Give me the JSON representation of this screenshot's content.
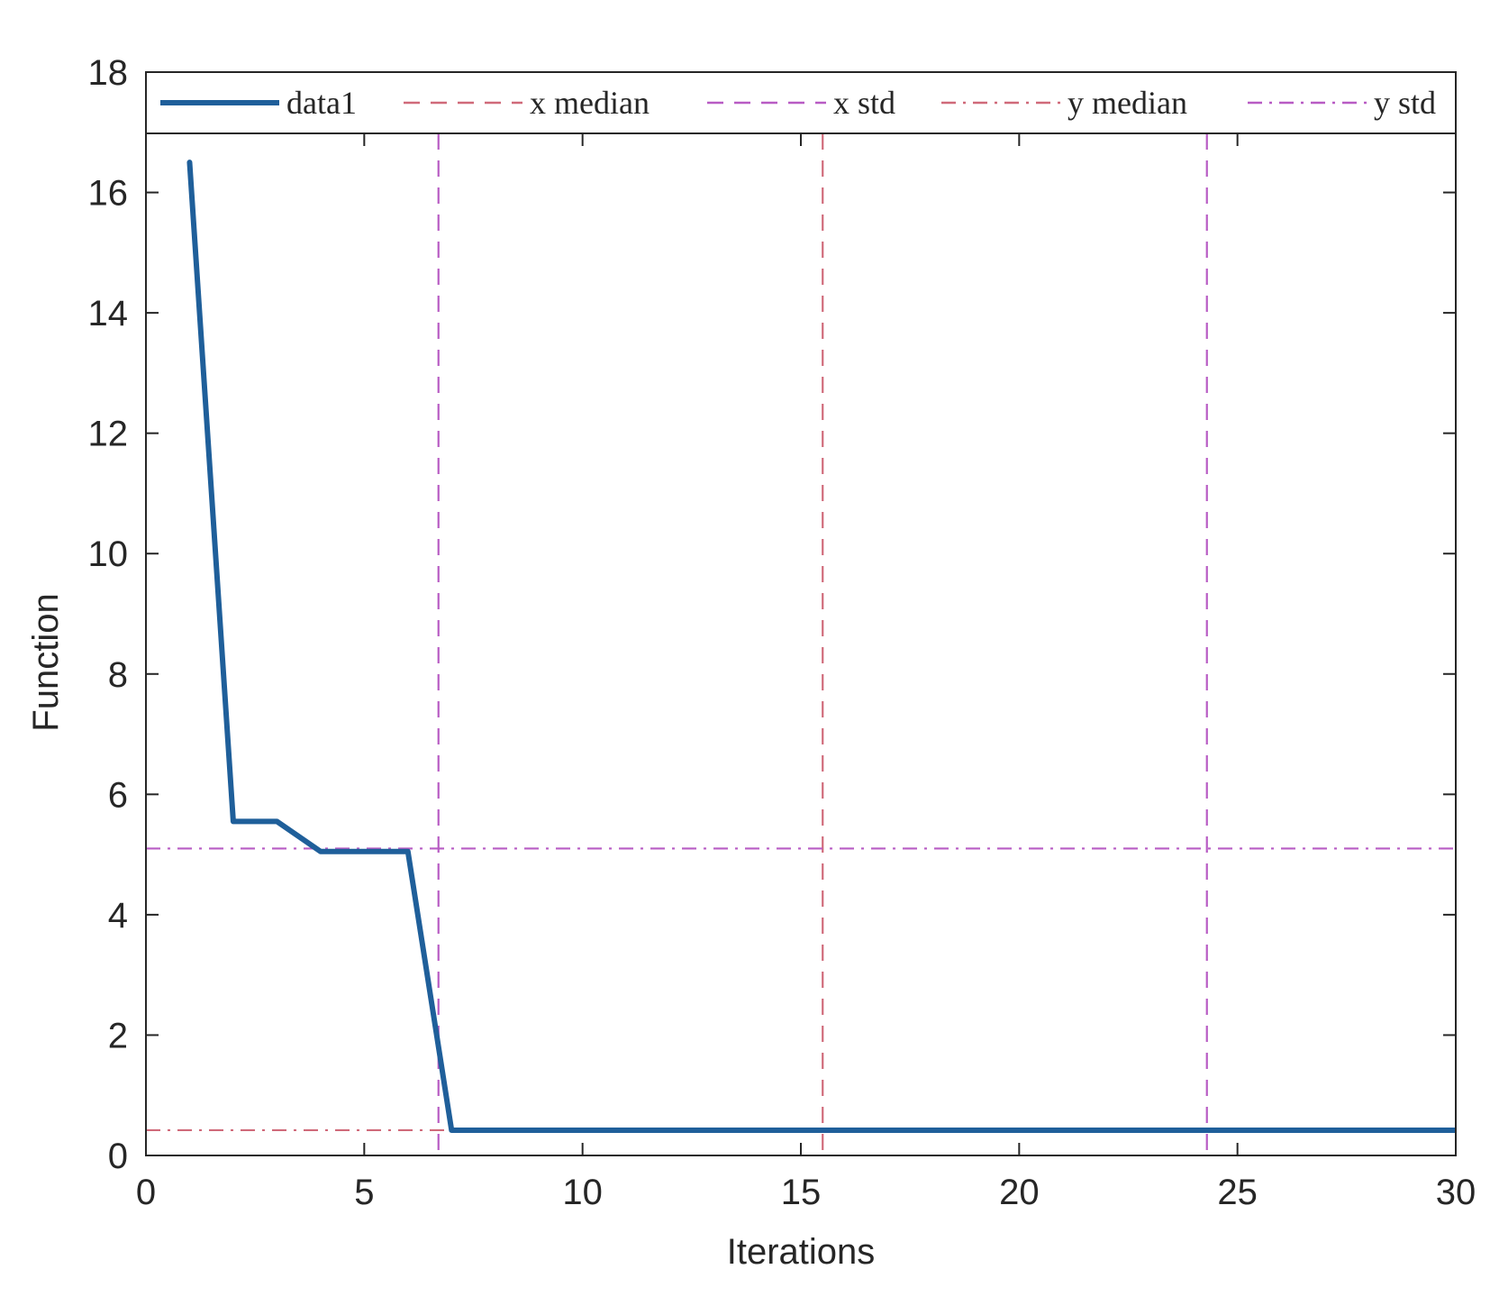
{
  "chart_data": {
    "type": "line",
    "title": "",
    "xlabel": "Iterations",
    "ylabel": "Function",
    "xlim": [
      0,
      30
    ],
    "ylim": [
      0,
      18
    ],
    "xticks": [
      0,
      5,
      10,
      15,
      20,
      25,
      30
    ],
    "yticks": [
      0,
      2,
      4,
      6,
      8,
      10,
      12,
      14,
      16,
      18
    ],
    "grid": false,
    "legend_position": "top",
    "series": [
      {
        "name": "data1",
        "style": "solid",
        "color": "#1f5f9a",
        "x": [
          1,
          2,
          3,
          4,
          5,
          6,
          7,
          8,
          9,
          10,
          11,
          12,
          13,
          14,
          15,
          16,
          17,
          18,
          19,
          20,
          21,
          22,
          23,
          24,
          25,
          26,
          27,
          28,
          29,
          30
        ],
        "y": [
          16.5,
          5.55,
          5.55,
          5.05,
          5.05,
          5.05,
          0.42,
          0.42,
          0.42,
          0.42,
          0.42,
          0.42,
          0.42,
          0.42,
          0.42,
          0.42,
          0.42,
          0.42,
          0.42,
          0.42,
          0.42,
          0.42,
          0.42,
          0.42,
          0.42,
          0.42,
          0.42,
          0.42,
          0.42,
          0.42
        ]
      }
    ],
    "reference_lines": [
      {
        "name": "x median",
        "orientation": "vertical",
        "values": [
          15.5
        ],
        "style": "dashed",
        "color": "#d06a7a"
      },
      {
        "name": "x std",
        "orientation": "vertical",
        "values": [
          6.7,
          24.3
        ],
        "style": "dashed",
        "color": "#b85cc4"
      },
      {
        "name": "y median",
        "orientation": "horizontal",
        "values": [
          0.42
        ],
        "style": "dashdot",
        "color": "#d06a7a"
      },
      {
        "name": "y std",
        "orientation": "horizontal",
        "values": [
          5.1
        ],
        "style": "dashdot",
        "color": "#b85cc4"
      }
    ],
    "legend": [
      {
        "label": "data1",
        "style": "solid",
        "color": "#1f5f9a"
      },
      {
        "label": "x median",
        "style": "dashed",
        "color": "#d06a7a"
      },
      {
        "label": "x std",
        "style": "dashed",
        "color": "#b85cc4"
      },
      {
        "label": "y median",
        "style": "dashdot",
        "color": "#d06a7a"
      },
      {
        "label": "y std",
        "style": "dashdot",
        "color": "#b85cc4"
      }
    ]
  }
}
